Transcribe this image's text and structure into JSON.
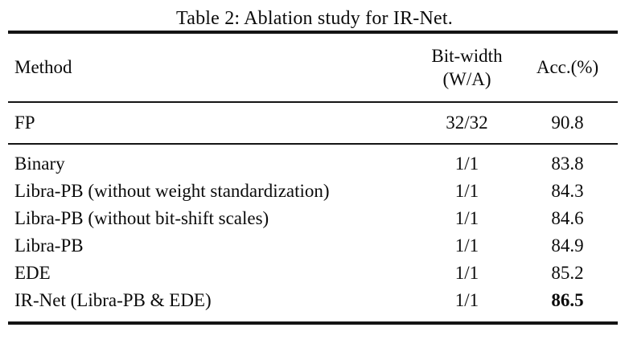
{
  "caption": "Table 2: Ablation study for IR-Net.",
  "header": {
    "method": "Method",
    "bitwidth_line1": "Bit-width",
    "bitwidth_line2": "(W/A)",
    "acc": "Acc.(%)"
  },
  "fp_row": {
    "method": "FP",
    "bitwidth": "32/32",
    "acc": "90.8"
  },
  "rows": [
    {
      "method": "Binary",
      "bitwidth": "1/1",
      "acc": "83.8",
      "bold_acc": false
    },
    {
      "method": "Libra-PB (without weight standardization)",
      "bitwidth": "1/1",
      "acc": "84.3",
      "bold_acc": false
    },
    {
      "method": "Libra-PB (without bit-shift scales)",
      "bitwidth": "1/1",
      "acc": "84.6",
      "bold_acc": false
    },
    {
      "method": "Libra-PB",
      "bitwidth": "1/1",
      "acc": "84.9",
      "bold_acc": false
    },
    {
      "method": "EDE",
      "bitwidth": "1/1",
      "acc": "85.2",
      "bold_acc": false
    },
    {
      "method": "IR-Net (Libra-PB & EDE)",
      "bitwidth": "1/1",
      "acc": "86.5",
      "bold_acc": true
    }
  ],
  "colors": {
    "text": "#0b0b0b",
    "rule": "#141414",
    "background": "#ffffff"
  }
}
